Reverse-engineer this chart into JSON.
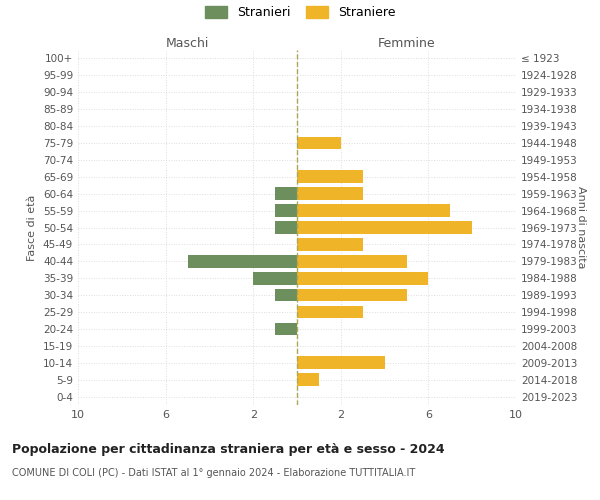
{
  "age_groups": [
    "100+",
    "95-99",
    "90-94",
    "85-89",
    "80-84",
    "75-79",
    "70-74",
    "65-69",
    "60-64",
    "55-59",
    "50-54",
    "45-49",
    "40-44",
    "35-39",
    "30-34",
    "25-29",
    "20-24",
    "15-19",
    "10-14",
    "5-9",
    "0-4"
  ],
  "birth_years": [
    "≤ 1923",
    "1924-1928",
    "1929-1933",
    "1934-1938",
    "1939-1943",
    "1944-1948",
    "1949-1953",
    "1954-1958",
    "1959-1963",
    "1964-1968",
    "1969-1973",
    "1974-1978",
    "1979-1983",
    "1984-1988",
    "1989-1993",
    "1994-1998",
    "1999-2003",
    "2004-2008",
    "2009-2013",
    "2014-2018",
    "2019-2023"
  ],
  "males": [
    0,
    0,
    0,
    0,
    0,
    0,
    0,
    0,
    1,
    1,
    1,
    0,
    5,
    2,
    1,
    0,
    1,
    0,
    0,
    0,
    0
  ],
  "females": [
    0,
    0,
    0,
    0,
    0,
    2,
    0,
    3,
    3,
    7,
    8,
    3,
    5,
    6,
    5,
    3,
    0,
    0,
    4,
    1,
    0
  ],
  "male_color": "#6d8f5e",
  "female_color": "#f0b429",
  "title": "Popolazione per cittadinanza straniera per età e sesso - 2024",
  "subtitle": "COMUNE DI COLI (PC) - Dati ISTAT al 1° gennaio 2024 - Elaborazione TUTTITALIA.IT",
  "header_left": "Maschi",
  "header_right": "Femmine",
  "ylabel_left": "Fasce di età",
  "ylabel_right": "Anni di nascita",
  "legend_male": "Stranieri",
  "legend_female": "Straniere",
  "background_color": "#ffffff",
  "grid_color": "#dddddd",
  "bar_height": 0.75,
  "center_line_color": "#aaa855",
  "center_line_style": "--"
}
